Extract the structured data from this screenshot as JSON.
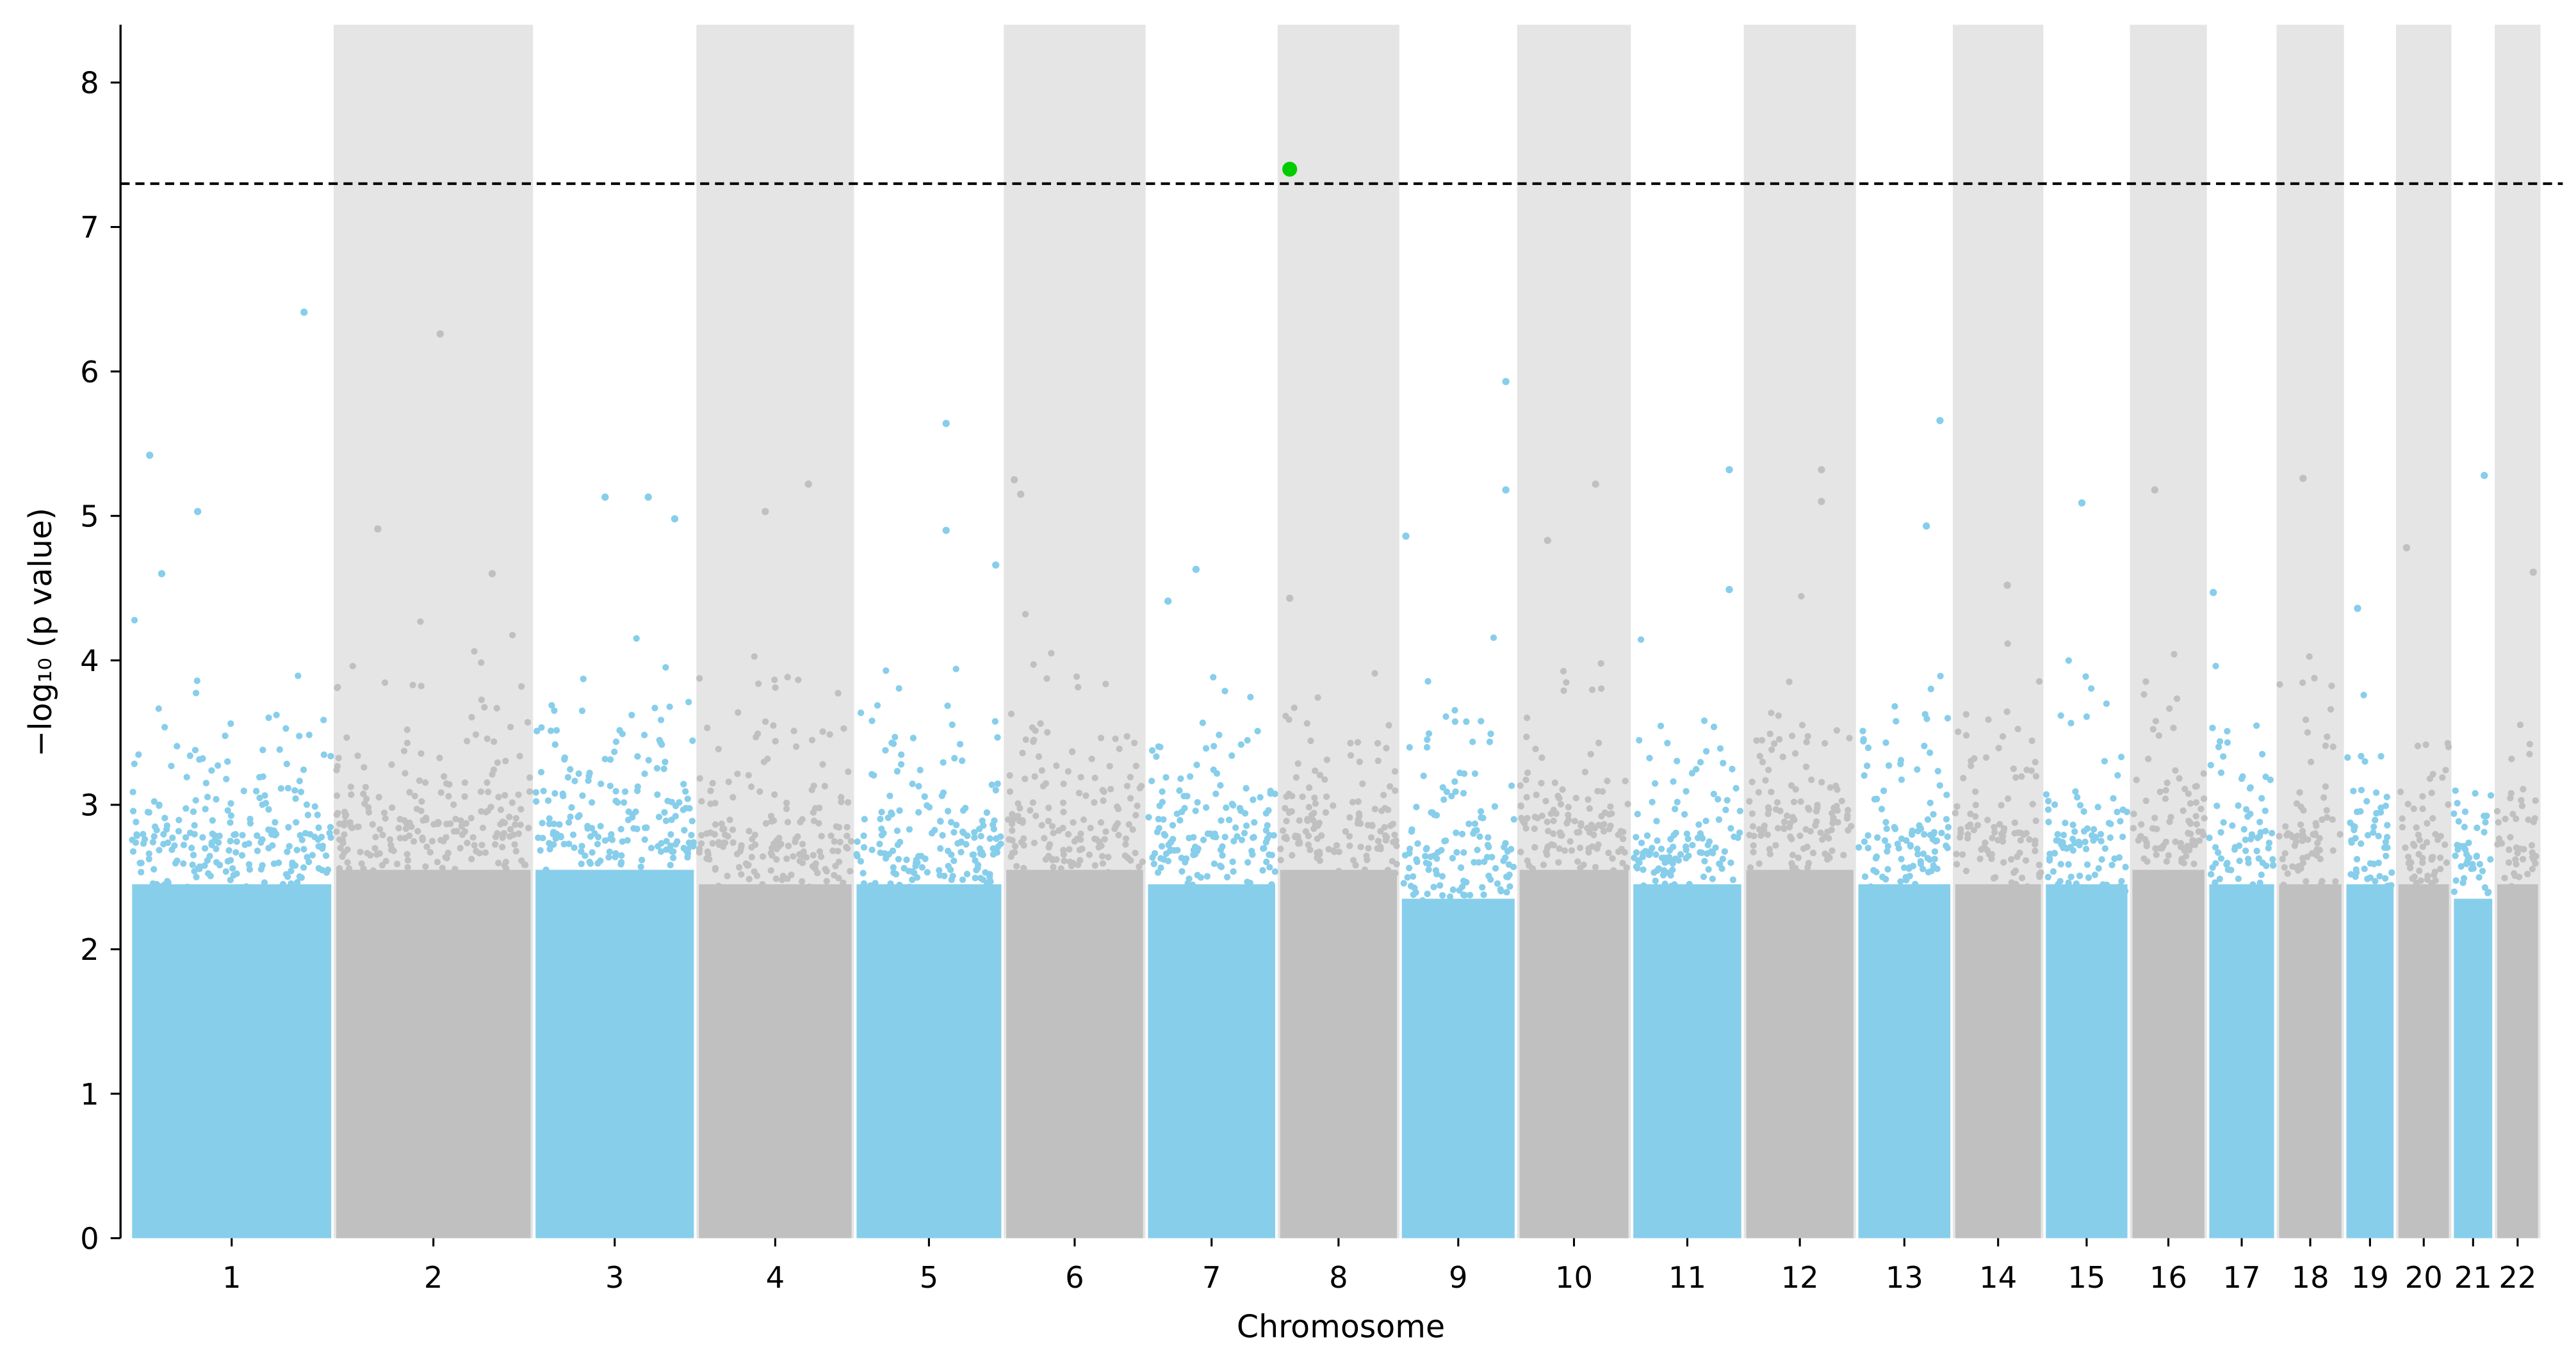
{
  "chart_data": {
    "type": "scatter",
    "subtype": "manhattan",
    "title": "",
    "xlabel": "Chromosome",
    "ylabel": "−log₁₀ (p value)",
    "ylim": [
      0,
      8.4
    ],
    "yticks": [
      0,
      1,
      2,
      3,
      4,
      5,
      6,
      7,
      8
    ],
    "significance_threshold": 7.3,
    "colors": {
      "odd": "#87ceeb",
      "even": "#c0c0c0",
      "band": "#e5e5e5",
      "significant": "#00cc00",
      "threshold": "#000000"
    },
    "chromosomes": [
      {
        "label": "1",
        "length_mb": 249,
        "bulk_max": 2.8
      },
      {
        "label": "2",
        "length_mb": 243,
        "bulk_max": 2.9
      },
      {
        "label": "3",
        "length_mb": 198,
        "bulk_max": 2.9
      },
      {
        "label": "4",
        "length_mb": 191,
        "bulk_max": 2.8
      },
      {
        "label": "5",
        "length_mb": 181,
        "bulk_max": 2.8
      },
      {
        "label": "6",
        "length_mb": 171,
        "bulk_max": 2.9
      },
      {
        "label": "7",
        "length_mb": 159,
        "bulk_max": 2.8
      },
      {
        "label": "8",
        "length_mb": 146,
        "bulk_max": 2.9
      },
      {
        "label": "9",
        "length_mb": 141,
        "bulk_max": 2.7
      },
      {
        "label": "10",
        "length_mb": 136,
        "bulk_max": 2.9
      },
      {
        "label": "11",
        "length_mb": 135,
        "bulk_max": 2.8
      },
      {
        "label": "12",
        "length_mb": 134,
        "bulk_max": 2.9
      },
      {
        "label": "13",
        "length_mb": 115,
        "bulk_max": 2.8
      },
      {
        "label": "14",
        "length_mb": 107,
        "bulk_max": 2.8
      },
      {
        "label": "15",
        "length_mb": 102,
        "bulk_max": 2.8
      },
      {
        "label": "16",
        "length_mb": 90,
        "bulk_max": 2.9
      },
      {
        "label": "17",
        "length_mb": 81,
        "bulk_max": 2.8
      },
      {
        "label": "18",
        "length_mb": 78,
        "bulk_max": 2.8
      },
      {
        "label": "19",
        "length_mb": 59,
        "bulk_max": 2.8
      },
      {
        "label": "20",
        "length_mb": 63,
        "bulk_max": 2.8
      },
      {
        "label": "21",
        "length_mb": 48,
        "bulk_max": 2.7
      },
      {
        "label": "22",
        "length_mb": 51,
        "bulk_max": 2.8
      }
    ],
    "top_hits": [
      {
        "chr": 1,
        "pos_mb": 22,
        "value": 5.42
      },
      {
        "chr": 1,
        "pos_mb": 82,
        "value": 5.03
      },
      {
        "chr": 1,
        "pos_mb": 215,
        "value": 6.41
      },
      {
        "chr": 1,
        "pos_mb": 37,
        "value": 4.6
      },
      {
        "chr": 2,
        "pos_mb": 52,
        "value": 4.91
      },
      {
        "chr": 2,
        "pos_mb": 130,
        "value": 6.26
      },
      {
        "chr": 2,
        "pos_mb": 195,
        "value": 4.6
      },
      {
        "chr": 3,
        "pos_mb": 87,
        "value": 5.13
      },
      {
        "chr": 3,
        "pos_mb": 141,
        "value": 5.13
      },
      {
        "chr": 3,
        "pos_mb": 174,
        "value": 4.98
      },
      {
        "chr": 4,
        "pos_mb": 83,
        "value": 5.03
      },
      {
        "chr": 4,
        "pos_mb": 137,
        "value": 5.22
      },
      {
        "chr": 5,
        "pos_mb": 112,
        "value": 5.64
      },
      {
        "chr": 5,
        "pos_mb": 112,
        "value": 4.9
      },
      {
        "chr": 5,
        "pos_mb": 174,
        "value": 4.66
      },
      {
        "chr": 6,
        "pos_mb": 10,
        "value": 5.25
      },
      {
        "chr": 6,
        "pos_mb": 18,
        "value": 5.15
      },
      {
        "chr": 7,
        "pos_mb": 60,
        "value": 4.63
      },
      {
        "chr": 7,
        "pos_mb": 25,
        "value": 4.41
      },
      {
        "chr": 8,
        "pos_mb": 12,
        "value": 7.4,
        "significant": true
      },
      {
        "chr": 8,
        "pos_mb": 12,
        "value": 4.43
      },
      {
        "chr": 9,
        "pos_mb": 5,
        "value": 4.86
      },
      {
        "chr": 9,
        "pos_mb": 130,
        "value": 5.93
      },
      {
        "chr": 9,
        "pos_mb": 130,
        "value": 5.18
      },
      {
        "chr": 10,
        "pos_mb": 35,
        "value": 4.83
      },
      {
        "chr": 10,
        "pos_mb": 95,
        "value": 5.22
      },
      {
        "chr": 11,
        "pos_mb": 120,
        "value": 5.32
      },
      {
        "chr": 11,
        "pos_mb": 120,
        "value": 4.49
      },
      {
        "chr": 12,
        "pos_mb": 94,
        "value": 5.32
      },
      {
        "chr": 12,
        "pos_mb": 94,
        "value": 5.1
      },
      {
        "chr": 13,
        "pos_mb": 102,
        "value": 5.66
      },
      {
        "chr": 13,
        "pos_mb": 85,
        "value": 4.93
      },
      {
        "chr": 14,
        "pos_mb": 65,
        "value": 4.52
      },
      {
        "chr": 15,
        "pos_mb": 45,
        "value": 5.09
      },
      {
        "chr": 16,
        "pos_mb": 28,
        "value": 5.18
      },
      {
        "chr": 17,
        "pos_mb": 5,
        "value": 4.47
      },
      {
        "chr": 18,
        "pos_mb": 30,
        "value": 5.26
      },
      {
        "chr": 19,
        "pos_mb": 14,
        "value": 4.36
      },
      {
        "chr": 20,
        "pos_mb": 10,
        "value": 4.78
      },
      {
        "chr": 21,
        "pos_mb": 38,
        "value": 5.28
      },
      {
        "chr": 22,
        "pos_mb": 45,
        "value": 4.61
      }
    ]
  }
}
